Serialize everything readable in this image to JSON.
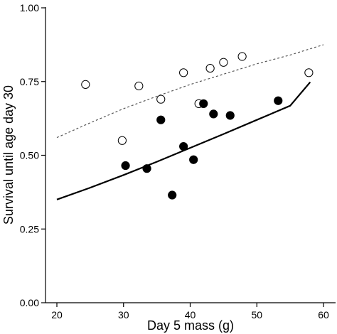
{
  "chart_data": {
    "type": "scatter",
    "title": "",
    "xlabel": "Day 5 mass (g)",
    "ylabel": "Survival until age day 30",
    "xlim": [
      16,
      62
    ],
    "ylim": [
      0,
      1
    ],
    "x_ticks": [
      20,
      30,
      40,
      50,
      60
    ],
    "x_tick_labels": [
      "20",
      "30",
      "40",
      "50",
      "60"
    ],
    "y_ticks": [
      0,
      0.25,
      0.5,
      0.75,
      1
    ],
    "y_tick_labels": [
      "0.00",
      "0.25",
      "0.50",
      "0.75",
      "1.00"
    ],
    "grid": false,
    "legend": "none",
    "series": [
      {
        "marker": "open-circle",
        "color": "#000000",
        "points": [
          {
            "x": 24.3,
            "y": 0.74
          },
          {
            "x": 29.8,
            "y": 0.55
          },
          {
            "x": 32.3,
            "y": 0.735
          },
          {
            "x": 35.6,
            "y": 0.69
          },
          {
            "x": 39.0,
            "y": 0.78
          },
          {
            "x": 41.3,
            "y": 0.675
          },
          {
            "x": 43.0,
            "y": 0.795
          },
          {
            "x": 45.0,
            "y": 0.815
          },
          {
            "x": 47.8,
            "y": 0.835
          },
          {
            "x": 57.8,
            "y": 0.78
          }
        ],
        "fit": {
          "style": "dashed",
          "color": "#555555",
          "x": [
            20,
            25,
            30,
            35,
            40,
            45,
            50,
            55,
            60
          ],
          "y": [
            0.56,
            0.61,
            0.658,
            0.7,
            0.74,
            0.775,
            0.81,
            0.84,
            0.875
          ]
        }
      },
      {
        "marker": "filled-circle",
        "color": "#000000",
        "points": [
          {
            "x": 30.3,
            "y": 0.465
          },
          {
            "x": 33.5,
            "y": 0.455
          },
          {
            "x": 35.6,
            "y": 0.62
          },
          {
            "x": 37.3,
            "y": 0.365
          },
          {
            "x": 39.0,
            "y": 0.53
          },
          {
            "x": 40.5,
            "y": 0.485
          },
          {
            "x": 42.0,
            "y": 0.675
          },
          {
            "x": 43.5,
            "y": 0.64
          },
          {
            "x": 46.0,
            "y": 0.635
          },
          {
            "x": 53.2,
            "y": 0.685
          }
        ],
        "fit": {
          "style": "solid",
          "color": "#000000",
          "x": [
            20,
            25,
            30,
            35,
            40,
            45,
            50,
            55,
            58
          ],
          "y": [
            0.35,
            0.39,
            0.433,
            0.478,
            0.525,
            0.572,
            0.62,
            0.668,
            0.748
          ]
        }
      }
    ]
  }
}
